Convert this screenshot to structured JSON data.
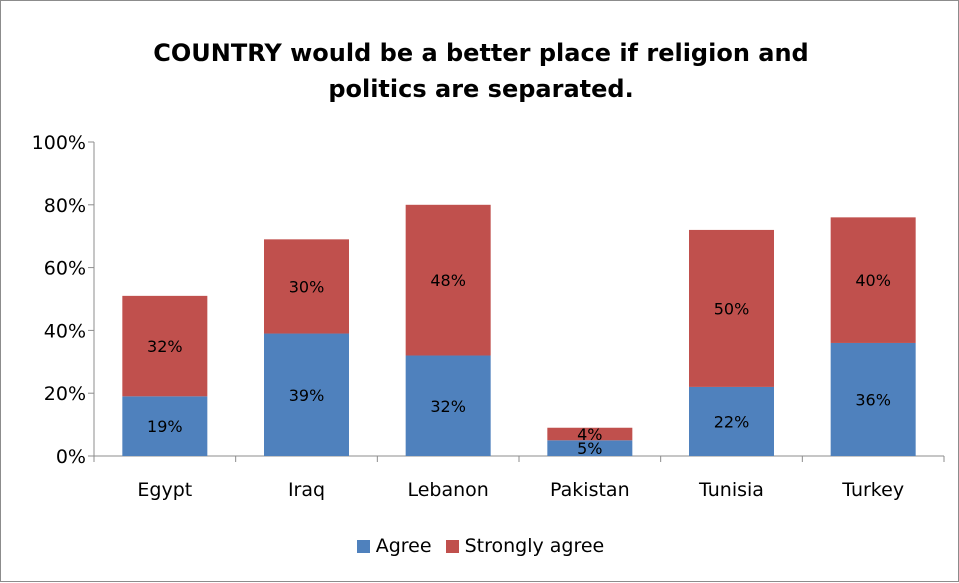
{
  "chart_data": {
    "type": "bar",
    "stacked": true,
    "title": "COUNTRY would be a better place if religion and politics are separated.",
    "categories": [
      "Egypt",
      "Iraq",
      "Lebanon",
      "Pakistan",
      "Tunisia",
      "Turkey"
    ],
    "series": [
      {
        "name": "Agree",
        "color": "#4f81bd",
        "values": [
          19,
          39,
          32,
          5,
          22,
          36
        ],
        "labels": [
          "19%",
          "39%",
          "32%",
          "5%",
          "22%",
          "36%"
        ]
      },
      {
        "name": "Strongly agree",
        "color": "#c0504d",
        "values": [
          32,
          30,
          48,
          4,
          50,
          40
        ],
        "labels": [
          "32%",
          "30%",
          "48%",
          "4%",
          "50%",
          "40%"
        ]
      }
    ],
    "ylim": [
      0,
      100
    ],
    "yticks": [
      0,
      20,
      40,
      60,
      80,
      100
    ],
    "ytick_labels": [
      "0%",
      "20%",
      "40%",
      "60%",
      "80%",
      "100%"
    ],
    "grid": false,
    "legend_position": "bottom"
  }
}
